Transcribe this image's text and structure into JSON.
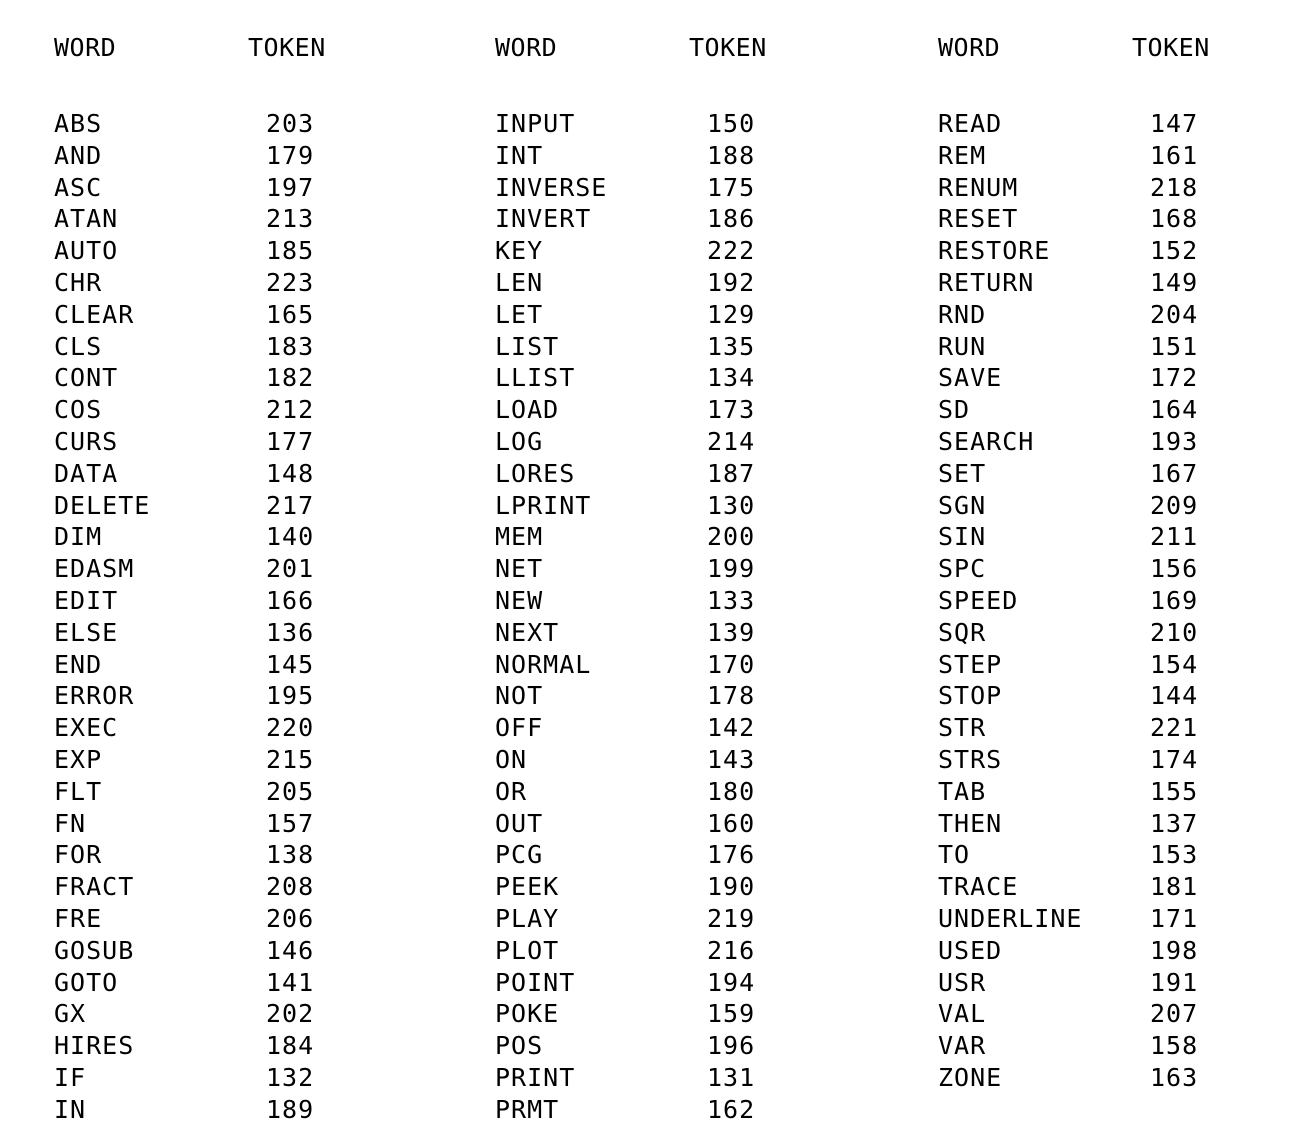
{
  "header": {
    "word_label": "WORD",
    "token_label": "TOKEN"
  },
  "columns": [
    {
      "rows": [
        {
          "word": "ABS",
          "token": "203"
        },
        {
          "word": "AND",
          "token": "179"
        },
        {
          "word": "ASC",
          "token": "197"
        },
        {
          "word": "ATAN",
          "token": "213"
        },
        {
          "word": "AUTO",
          "token": "185"
        },
        {
          "word": "CHR",
          "token": "223"
        },
        {
          "word": "CLEAR",
          "token": "165"
        },
        {
          "word": "CLS",
          "token": "183"
        },
        {
          "word": "CONT",
          "token": "182"
        },
        {
          "word": "COS",
          "token": "212"
        },
        {
          "word": "CURS",
          "token": "177"
        },
        {
          "word": "DATA",
          "token": "148"
        },
        {
          "word": "DELETE",
          "token": "217"
        },
        {
          "word": "DIM",
          "token": "140"
        },
        {
          "word": "EDASM",
          "token": "201"
        },
        {
          "word": "EDIT",
          "token": "166"
        },
        {
          "word": "ELSE",
          "token": "136"
        },
        {
          "word": "END",
          "token": "145"
        },
        {
          "word": "ERROR",
          "token": "195"
        },
        {
          "word": "EXEC",
          "token": "220"
        },
        {
          "word": "EXP",
          "token": "215"
        },
        {
          "word": "FLT",
          "token": "205"
        },
        {
          "word": "FN",
          "token": "157"
        },
        {
          "word": "FOR",
          "token": "138"
        },
        {
          "word": "FRACT",
          "token": "208"
        },
        {
          "word": "FRE",
          "token": "206"
        },
        {
          "word": "GOSUB",
          "token": "146"
        },
        {
          "word": "GOTO",
          "token": "141"
        },
        {
          "word": "GX",
          "token": "202"
        },
        {
          "word": "HIRES",
          "token": "184"
        },
        {
          "word": "IF",
          "token": "132"
        },
        {
          "word": "IN",
          "token": "189"
        }
      ]
    },
    {
      "rows": [
        {
          "word": "INPUT",
          "token": "150"
        },
        {
          "word": "INT",
          "token": "188"
        },
        {
          "word": "INVERSE",
          "token": "175"
        },
        {
          "word": "INVERT",
          "token": "186"
        },
        {
          "word": "KEY",
          "token": "222"
        },
        {
          "word": "LEN",
          "token": "192"
        },
        {
          "word": "LET",
          "token": "129"
        },
        {
          "word": "LIST",
          "token": "135"
        },
        {
          "word": "LLIST",
          "token": "134"
        },
        {
          "word": "LOAD",
          "token": "173"
        },
        {
          "word": "LOG",
          "token": "214"
        },
        {
          "word": "LORES",
          "token": "187"
        },
        {
          "word": "LPRINT",
          "token": "130"
        },
        {
          "word": "MEM",
          "token": "200"
        },
        {
          "word": "NET",
          "token": "199"
        },
        {
          "word": "NEW",
          "token": "133"
        },
        {
          "word": "NEXT",
          "token": "139"
        },
        {
          "word": "NORMAL",
          "token": "170"
        },
        {
          "word": "NOT",
          "token": "178"
        },
        {
          "word": "OFF",
          "token": "142"
        },
        {
          "word": "ON",
          "token": "143"
        },
        {
          "word": "OR",
          "token": "180"
        },
        {
          "word": "OUT",
          "token": "160"
        },
        {
          "word": "PCG",
          "token": "176"
        },
        {
          "word": "PEEK",
          "token": "190"
        },
        {
          "word": "PLAY",
          "token": "219"
        },
        {
          "word": "PLOT",
          "token": "216"
        },
        {
          "word": "POINT",
          "token": "194"
        },
        {
          "word": "POKE",
          "token": "159"
        },
        {
          "word": "POS",
          "token": "196"
        },
        {
          "word": "PRINT",
          "token": "131"
        },
        {
          "word": "PRMT",
          "token": "162"
        }
      ]
    },
    {
      "rows": [
        {
          "word": "READ",
          "token": "147"
        },
        {
          "word": "REM",
          "token": "161"
        },
        {
          "word": "RENUM",
          "token": "218"
        },
        {
          "word": "RESET",
          "token": "168"
        },
        {
          "word": "RESTORE",
          "token": "152"
        },
        {
          "word": "RETURN",
          "token": "149"
        },
        {
          "word": "RND",
          "token": "204"
        },
        {
          "word": "RUN",
          "token": "151"
        },
        {
          "word": "SAVE",
          "token": "172"
        },
        {
          "word": "SD",
          "token": "164"
        },
        {
          "word": "SEARCH",
          "token": "193"
        },
        {
          "word": "SET",
          "token": "167"
        },
        {
          "word": "SGN",
          "token": "209"
        },
        {
          "word": "SIN",
          "token": "211"
        },
        {
          "word": "SPC",
          "token": "156"
        },
        {
          "word": "SPEED",
          "token": "169"
        },
        {
          "word": "SQR",
          "token": "210"
        },
        {
          "word": "STEP",
          "token": "154"
        },
        {
          "word": "STOP",
          "token": "144"
        },
        {
          "word": "STR",
          "token": "221"
        },
        {
          "word": "STRS",
          "token": "174"
        },
        {
          "word": "TAB",
          "token": "155"
        },
        {
          "word": "THEN",
          "token": "137"
        },
        {
          "word": "TO",
          "token": "153"
        },
        {
          "word": "TRACE",
          "token": "181"
        },
        {
          "word": "UNDERLINE",
          "token": "171"
        },
        {
          "word": "USED",
          "token": "198"
        },
        {
          "word": "USR",
          "token": "191"
        },
        {
          "word": "VAL",
          "token": "207"
        },
        {
          "word": "VAR",
          "token": "158"
        },
        {
          "word": "ZONE",
          "token": "163"
        }
      ]
    }
  ]
}
